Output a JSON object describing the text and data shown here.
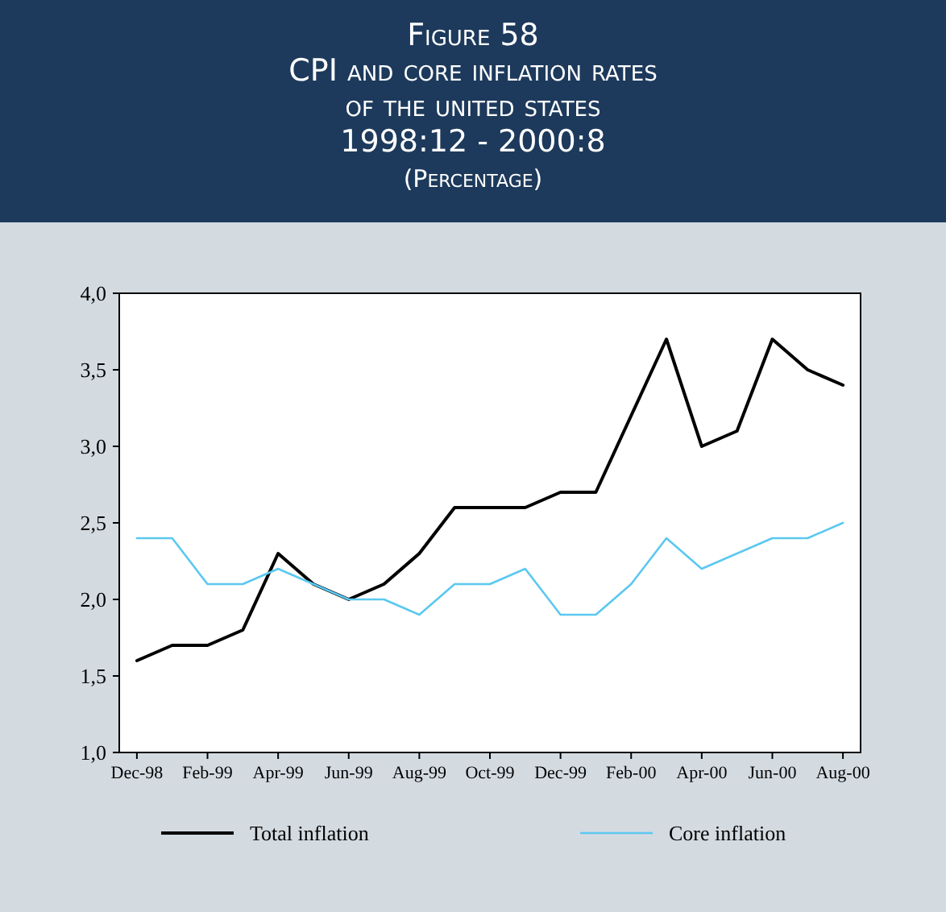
{
  "chart_data": {
    "type": "line",
    "title": "Figure 58\nCPI and core inflation rates\nof the united states\n1998:12 - 2000:8",
    "subtitle": "(Percentage)",
    "categories": [
      "Dec-98",
      null,
      "Feb-99",
      null,
      "Apr-99",
      null,
      "Jun-99",
      null,
      "Aug-99",
      null,
      "Oct-99",
      null,
      "Dec-99",
      null,
      "Feb-00",
      null,
      "Apr-00",
      null,
      "Jun-00",
      null,
      "Aug-00"
    ],
    "series": [
      {
        "name": "Total inflation",
        "color": "#000000",
        "values": [
          1.6,
          1.7,
          1.7,
          1.8,
          2.3,
          2.1,
          2.0,
          2.1,
          2.3,
          2.6,
          2.6,
          2.6,
          2.7,
          2.7,
          3.2,
          3.7,
          3.0,
          3.1,
          3.7,
          3.5,
          3.4
        ]
      },
      {
        "name": "Core inflation",
        "color": "#5bc8f0",
        "values": [
          2.4,
          2.4,
          2.1,
          2.1,
          2.2,
          2.1,
          2.0,
          2.0,
          1.9,
          2.1,
          2.1,
          2.2,
          1.9,
          1.9,
          2.1,
          2.4,
          2.2,
          2.3,
          2.4,
          2.4,
          2.5
        ]
      }
    ],
    "ylim": [
      1.0,
      4.0
    ],
    "yticks": [
      {
        "value": 1.0,
        "label": "1,0"
      },
      {
        "value": 1.5,
        "label": "1,5"
      },
      {
        "value": 2.0,
        "label": "2,0"
      },
      {
        "value": 2.5,
        "label": "2,5"
      },
      {
        "value": 3.0,
        "label": "3,0"
      },
      {
        "value": 3.5,
        "label": "3,5"
      },
      {
        "value": 4.0,
        "label": "4,0"
      }
    ],
    "legend": "bottom",
    "line_style": "solid",
    "marker": "none"
  }
}
